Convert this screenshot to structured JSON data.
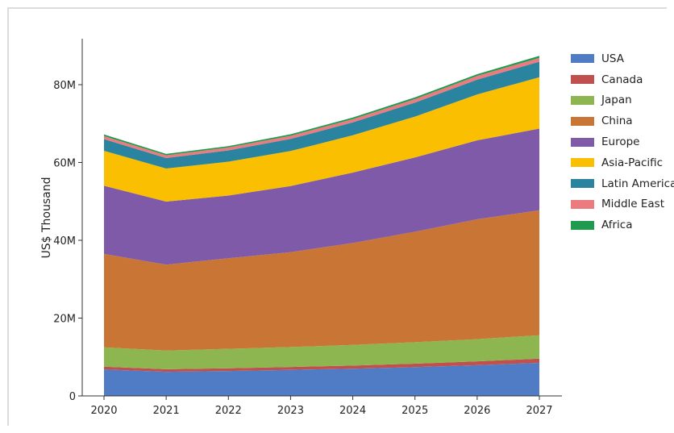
{
  "chart_data": {
    "type": "area",
    "stacked": true,
    "title": "",
    "xlabel": "",
    "ylabel": "US$ Thousand",
    "x": [
      "2020",
      "2021",
      "2022",
      "2023",
      "2024",
      "2025",
      "2026",
      "2027"
    ],
    "ylim": [
      0,
      90000000
    ],
    "yticks": [
      {
        "value": 0,
        "label": "0"
      },
      {
        "value": 20000000,
        "label": "20M"
      },
      {
        "value": 40000000,
        "label": "40M"
      },
      {
        "value": 60000000,
        "label": "60M"
      },
      {
        "value": 80000000,
        "label": "80M"
      }
    ],
    "grid": false,
    "legend_position": "right",
    "series": [
      {
        "name": "USA",
        "color": "#4f7cc4",
        "values": [
          6800000,
          6200000,
          6400000,
          6700000,
          7000000,
          7400000,
          7900000,
          8500000
        ]
      },
      {
        "name": "Canada",
        "color": "#c0504d",
        "values": [
          700000,
          650000,
          700000,
          750000,
          800000,
          900000,
          1000000,
          1100000
        ]
      },
      {
        "name": "Japan",
        "color": "#8db650",
        "values": [
          5000000,
          4800000,
          5000000,
          5100000,
          5300000,
          5500000,
          5700000,
          6000000
        ]
      },
      {
        "name": "China",
        "color": "#c87535",
        "values": [
          24000000,
          22100000,
          23300000,
          24400000,
          26200000,
          28400000,
          30800000,
          32100000
        ]
      },
      {
        "name": "Europe",
        "color": "#7f5aa8",
        "values": [
          17500000,
          16200000,
          16100000,
          17000000,
          18100000,
          19100000,
          20300000,
          21000000
        ]
      },
      {
        "name": "Asia-Pacific",
        "color": "#f9bf00",
        "values": [
          9000000,
          8500000,
          8700000,
          9000000,
          9600000,
          10500000,
          11800000,
          13200000
        ]
      },
      {
        "name": "Latin America",
        "color": "#2a849f",
        "values": [
          3000000,
          2700000,
          2900000,
          3100000,
          3300000,
          3600000,
          3800000,
          4000000
        ]
      },
      {
        "name": "Middle East",
        "color": "#ec7b80",
        "values": [
          800000,
          700000,
          750000,
          800000,
          850000,
          900000,
          950000,
          1000000
        ]
      },
      {
        "name": "Africa",
        "color": "#1e9b4e",
        "values": [
          400000,
          350000,
          350000,
          400000,
          400000,
          450000,
          450000,
          500000
        ]
      }
    ]
  }
}
